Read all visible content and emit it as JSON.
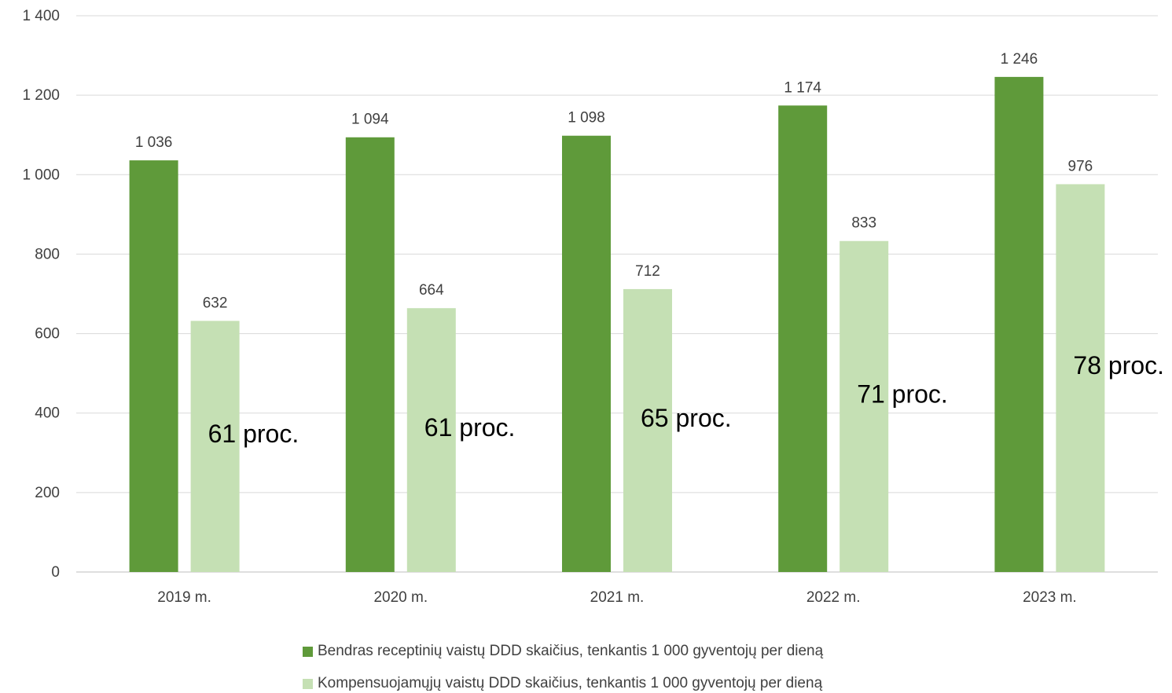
{
  "chart_data": {
    "type": "bar",
    "categories": [
      "2019 m.",
      "2020 m.",
      "2021 m.",
      "2022 m.",
      "2023 m."
    ],
    "series": [
      {
        "name": "Bendras receptinių vaistų DDD skaičius, tenkantis 1 000 gyventojų per dieną",
        "values": [
          1036,
          1094,
          1098,
          1174,
          1246
        ],
        "labels": [
          "1 036",
          "1 094",
          "1 098",
          "1 174",
          "1 246"
        ],
        "color": "#5f9a3a"
      },
      {
        "name": "Kompensuojamųjų vaistų DDD skaičius, tenkantis 1 000 gyventojų per dieną",
        "values": [
          632,
          664,
          712,
          833,
          976
        ],
        "labels": [
          "632",
          "664",
          "712",
          "833",
          "976"
        ],
        "color": "#c5e0b4"
      }
    ],
    "annotations": [
      "61 proc.",
      "61 proc.",
      "65 proc.",
      "71 proc.",
      "78 proc."
    ],
    "ylim": [
      0,
      1400
    ],
    "yticks": [
      0,
      200,
      400,
      600,
      800,
      1000,
      1200,
      1400
    ],
    "ytick_labels": [
      "0",
      "200",
      "400",
      "600",
      "800",
      "1 000",
      "1 200",
      "1 400"
    ],
    "grid": true,
    "legend_position": "bottom",
    "title": "",
    "xlabel": "",
    "ylabel": ""
  }
}
